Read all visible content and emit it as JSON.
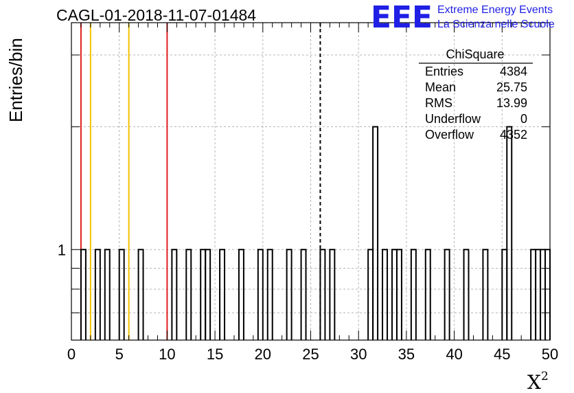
{
  "chart_data": {
    "type": "bar",
    "title": "CAGL-01-2018-11-07-01484",
    "xlabel": "X",
    "xlabel_superscript": "2",
    "ylabel": "Entries/bin",
    "xlim": [
      0,
      50
    ],
    "ylog": true,
    "ylim": [
      0.6,
      3.6
    ],
    "ytick_labels": [
      {
        "value": 1,
        "label": "1"
      }
    ],
    "xtick_labels": [
      "0",
      "5",
      "10",
      "15",
      "20",
      "25",
      "30",
      "35",
      "40",
      "45",
      "50"
    ],
    "xtick_values": [
      0,
      5,
      10,
      15,
      20,
      25,
      30,
      35,
      40,
      45,
      50
    ],
    "grid": true,
    "bin_width": 0.5,
    "bins": [
      {
        "x": 1.0,
        "y": 1
      },
      {
        "x": 2.5,
        "y": 1
      },
      {
        "x": 3.5,
        "y": 1
      },
      {
        "x": 5.0,
        "y": 1
      },
      {
        "x": 7.0,
        "y": 1
      },
      {
        "x": 10.5,
        "y": 1
      },
      {
        "x": 12.0,
        "y": 1
      },
      {
        "x": 13.5,
        "y": 1
      },
      {
        "x": 14.0,
        "y": 1
      },
      {
        "x": 15.5,
        "y": 1
      },
      {
        "x": 17.5,
        "y": 1
      },
      {
        "x": 19.5,
        "y": 1
      },
      {
        "x": 20.5,
        "y": 1
      },
      {
        "x": 22.5,
        "y": 1
      },
      {
        "x": 24.0,
        "y": 1
      },
      {
        "x": 26.0,
        "y": 1
      },
      {
        "x": 27.0,
        "y": 1
      },
      {
        "x": 31.0,
        "y": 1
      },
      {
        "x": 31.5,
        "y": 2
      },
      {
        "x": 32.5,
        "y": 1
      },
      {
        "x": 33.5,
        "y": 1
      },
      {
        "x": 34.0,
        "y": 1
      },
      {
        "x": 35.5,
        "y": 1
      },
      {
        "x": 37.0,
        "y": 1
      },
      {
        "x": 39.0,
        "y": 1
      },
      {
        "x": 41.0,
        "y": 1
      },
      {
        "x": 43.0,
        "y": 1
      },
      {
        "x": 45.0,
        "y": 1
      },
      {
        "x": 45.5,
        "y": 2
      },
      {
        "x": 48.0,
        "y": 1
      },
      {
        "x": 48.5,
        "y": 1
      },
      {
        "x": 49.0,
        "y": 1
      },
      {
        "x": 49.5,
        "y": 1
      }
    ],
    "vertical_lines": [
      {
        "x": 1.0,
        "color": "#e0201b",
        "style": "solid"
      },
      {
        "x": 2.0,
        "color": "#f2c200",
        "style": "solid"
      },
      {
        "x": 6.0,
        "color": "#f2c200",
        "style": "solid"
      },
      {
        "x": 10.0,
        "color": "#e0201b",
        "style": "solid"
      },
      {
        "x": 26.0,
        "color": "#000000",
        "style": "dashed"
      }
    ]
  },
  "stats_box": {
    "title": "ChiSquare",
    "rows": [
      {
        "label": "Entries",
        "value": "4384"
      },
      {
        "label": "Mean",
        "value": "25.75"
      },
      {
        "label": "RMS",
        "value": "13.99"
      },
      {
        "label": "Underflow",
        "value": "0"
      },
      {
        "label": "Overflow",
        "value": "4352"
      }
    ]
  },
  "logo": {
    "mark": "EEE",
    "line1": "Extreme Energy Events",
    "line2": "La Scienza nelle Scuole",
    "color": "#1f1fe6"
  }
}
